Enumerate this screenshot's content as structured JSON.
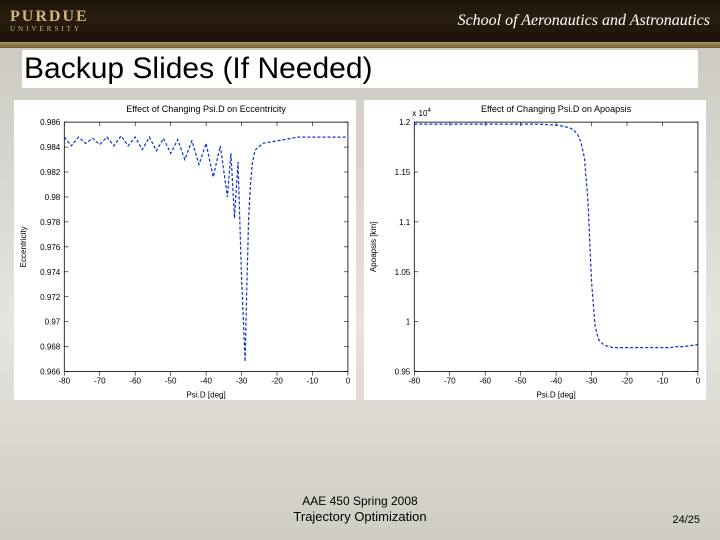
{
  "header": {
    "logo_top": "PURDUE",
    "logo_bottom": "UNIVERSITY",
    "school": "School of Aeronautics and Astronautics",
    "stripe_color_top": "#a9985f",
    "stripe_color_bottom": "#6d5e33",
    "bg_dark": "#1c1207"
  },
  "title": "Backup Slides (If Needed)",
  "footer": {
    "line1": "AAE 450 Spring 2008",
    "line2": "Trajectory Optimization",
    "page": "24/25"
  },
  "chart_left": {
    "type": "line",
    "title": "Effect of Changing Psi.D on Eccentricity",
    "xlabel": "Psi.D [deg]",
    "ylabel": "Eccentricity",
    "xlim": [
      -80,
      0
    ],
    "xtick_step": 10,
    "ylim": [
      0.966,
      0.986
    ],
    "ytick_step": 0.002,
    "line_color": "#1030d0",
    "line_width": 1.2,
    "dash": "3,2",
    "background_color": "#ffffff",
    "x": [
      -80,
      -78,
      -76,
      -74,
      -72,
      -70,
      -68,
      -66,
      -64,
      -62,
      -60,
      -58,
      -56,
      -54,
      -52,
      -50,
      -48,
      -46,
      -44,
      -42,
      -40,
      -38,
      -36,
      -34,
      -33,
      -32,
      -31,
      -30,
      -29.5,
      -29,
      -28.5,
      -28,
      -27.5,
      -27,
      -26.5,
      -26,
      -24,
      -22,
      -20,
      -18,
      -16,
      -14,
      -12,
      -10,
      -8,
      -6,
      -4,
      -2,
      0
    ],
    "y": [
      0.9848,
      0.9841,
      0.9848,
      0.9843,
      0.9847,
      0.9842,
      0.9848,
      0.9841,
      0.9849,
      0.9841,
      0.9848,
      0.9838,
      0.9848,
      0.9837,
      0.9847,
      0.9835,
      0.9846,
      0.983,
      0.9845,
      0.9826,
      0.9843,
      0.9816,
      0.9841,
      0.98,
      0.9835,
      0.9783,
      0.9828,
      0.9735,
      0.9702,
      0.9668,
      0.973,
      0.9783,
      0.981,
      0.9826,
      0.9834,
      0.9838,
      0.9843,
      0.9844,
      0.9845,
      0.9846,
      0.9847,
      0.9848,
      0.9848,
      0.9848,
      0.9848,
      0.9848,
      0.9848,
      0.9848,
      0.9848
    ]
  },
  "chart_right": {
    "type": "line",
    "title": "Effect of Changing Psi.D on Apoapsis",
    "xlabel": "Psi.D [deg]",
    "ylabel": "Apoapsis [km]",
    "y_multiplier_label": "x 10",
    "y_multiplier_exp": "4",
    "xlim": [
      -80,
      0
    ],
    "xtick_step": 10,
    "ylim": [
      0.95,
      1.2
    ],
    "ytick_step": 0.05,
    "yticks": [
      0.95,
      1,
      1.05,
      1.1,
      1.15,
      1.2
    ],
    "line_color": "#1030d0",
    "line_width": 1.2,
    "dash": "3,2",
    "background_color": "#ffffff",
    "x": [
      -80,
      -75,
      -70,
      -65,
      -60,
      -55,
      -50,
      -45,
      -40,
      -38,
      -36,
      -35,
      -34,
      -33,
      -32,
      -31,
      -30,
      -29,
      -28,
      -27,
      -26,
      -25,
      -24,
      -22,
      -20,
      -18,
      -15,
      -12,
      -10,
      -8,
      -6,
      -4,
      -2,
      0
    ],
    "y": [
      1.198,
      1.198,
      1.198,
      1.198,
      1.198,
      1.198,
      1.198,
      1.198,
      1.197,
      1.196,
      1.194,
      1.192,
      1.188,
      1.18,
      1.164,
      1.12,
      1.04,
      0.995,
      0.982,
      0.978,
      0.976,
      0.975,
      0.974,
      0.974,
      0.974,
      0.974,
      0.974,
      0.974,
      0.974,
      0.974,
      0.975,
      0.975,
      0.976,
      0.977
    ]
  }
}
